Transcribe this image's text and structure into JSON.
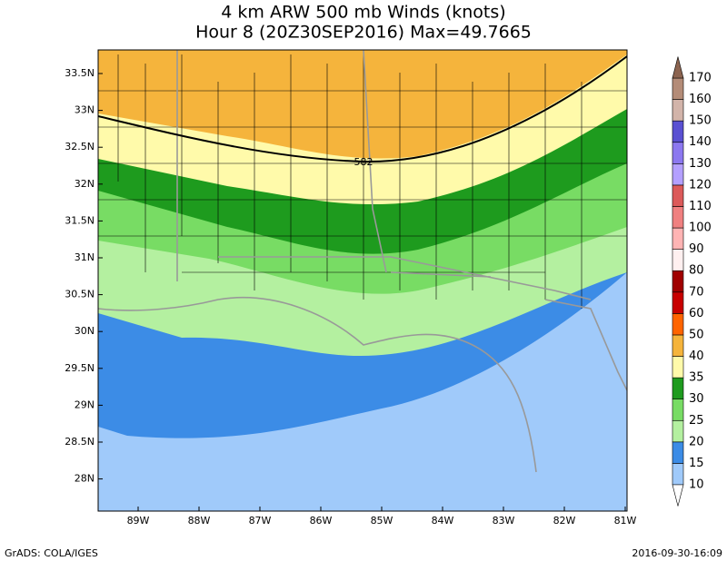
{
  "title": {
    "line1": "4 km ARW 500 mb Winds (knots)",
    "line2": "Hour 8 (20Z30SEP2016) Max=49.7665"
  },
  "map": {
    "lat_labels": [
      "33.5N",
      "33N",
      "32.5N",
      "32N",
      "31.5N",
      "31N",
      "30.5N",
      "30N",
      "29.5N",
      "29N",
      "28.5N",
      "28N"
    ],
    "lon_labels": [
      "89W",
      "88W",
      "87W",
      "86W",
      "85W",
      "84W",
      "83W",
      "82W",
      "81W"
    ],
    "contour_label": "582"
  },
  "colorbar": {
    "levels": [
      10,
      15,
      20,
      25,
      30,
      35,
      40,
      50,
      60,
      70,
      80,
      90,
      100,
      110,
      120,
      130,
      140,
      150,
      160,
      170
    ],
    "colors": [
      "#ffffff",
      "#a0cafa",
      "#3c8ce6",
      "#b4f0a0",
      "#78dc64",
      "#1e9b1e",
      "#fffaaa",
      "#f5b43c",
      "#ff6400",
      "#c80000",
      "#a00000",
      "#fff0f0",
      "#ffb4b4",
      "#f08080",
      "#dc5a5a",
      "#b4a0ff",
      "#8c78f0",
      "#5a50d2",
      "#d2b4aa",
      "#b48c78",
      "#8c6450"
    ]
  },
  "footer": {
    "left": "GrADS: COLA/IGES",
    "right": "2016-09-30-16:09"
  }
}
